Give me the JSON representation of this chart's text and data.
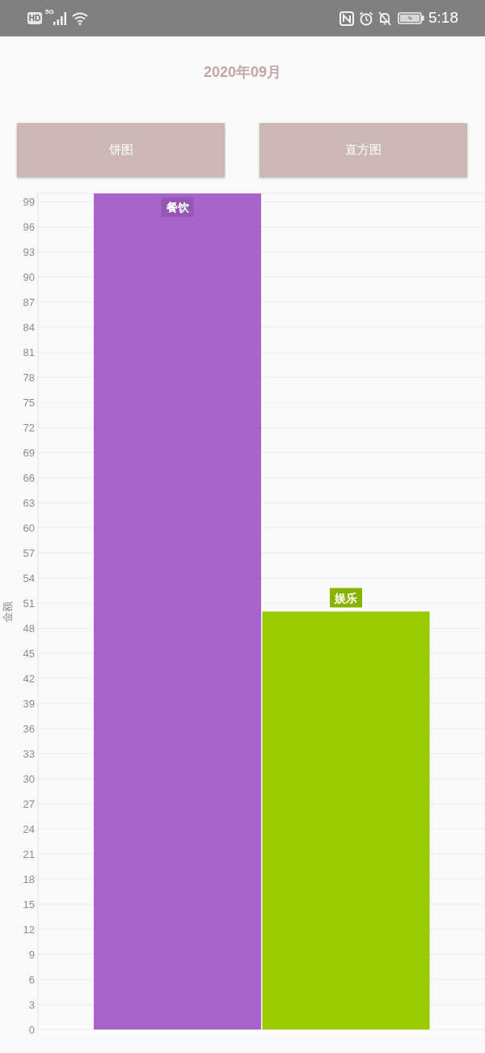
{
  "chart_data": {
    "type": "bar",
    "title": "2020年09月",
    "ylabel": "金额",
    "categories": [
      "餐饮",
      "娱乐"
    ],
    "values": [
      100,
      50
    ],
    "colors": [
      "#a864cc",
      "#99cc00"
    ],
    "ylim": [
      0,
      100
    ],
    "yticks": [
      0,
      3,
      6,
      9,
      12,
      15,
      18,
      21,
      24,
      27,
      30,
      33,
      36,
      39,
      42,
      45,
      48,
      51,
      54,
      57,
      60,
      63,
      66,
      69,
      72,
      75,
      78,
      81,
      84,
      87,
      90,
      93,
      96,
      99
    ],
    "grid": "y",
    "annotations": [
      "饼图",
      "直方图",
      "HD",
      "5G",
      "5:18"
    ]
  }
}
